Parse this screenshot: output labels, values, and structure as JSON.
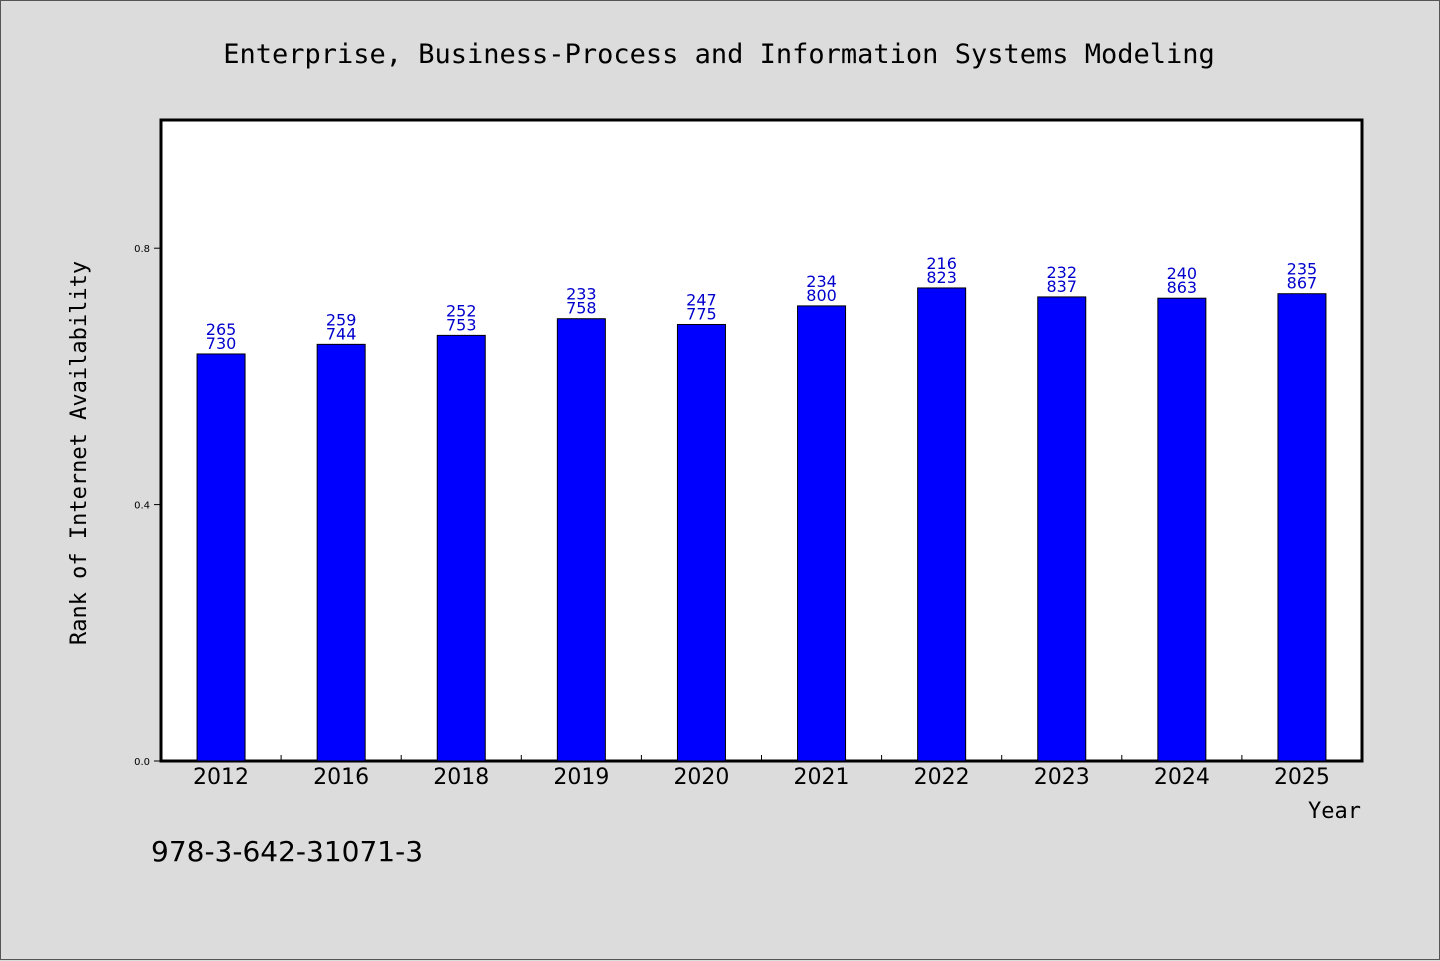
{
  "footer_text": "978-3-642-31071-3",
  "colors": {
    "background": "#dcdcdc",
    "plot_background": "#ffffff",
    "bar_fill": "#0000ff",
    "bar_label": "#0000cc",
    "axis": "#000000"
  },
  "chart_data": {
    "type": "bar",
    "title": "Enterprise, Business-Process and Information Systems Modeling",
    "xlabel": "Year",
    "ylabel": "Rank of Internet Availability",
    "ylim": [
      0.0,
      1.0
    ],
    "yticks": [
      "0.0",
      "0.4",
      "0.8"
    ],
    "ytick_values": [
      0.0,
      0.4,
      0.8
    ],
    "grid": false,
    "categories": [
      "2012",
      "2016",
      "2018",
      "2019",
      "2020",
      "2021",
      "2022",
      "2023",
      "2024",
      "2025"
    ],
    "values": [
      0.635,
      0.65,
      0.664,
      0.69,
      0.681,
      0.71,
      0.738,
      0.724,
      0.722,
      0.729
    ],
    "label_numerators": [
      "265",
      "259",
      "252",
      "233",
      "247",
      "234",
      "216",
      "232",
      "240",
      "235"
    ],
    "label_denominators": [
      "730",
      "744",
      "753",
      "758",
      "775",
      "800",
      "823",
      "837",
      "863",
      "867"
    ]
  }
}
